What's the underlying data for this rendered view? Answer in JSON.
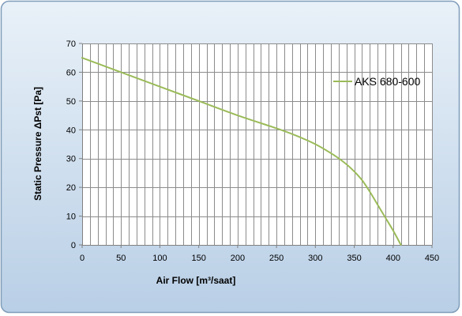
{
  "chart_data": {
    "type": "line",
    "xlabel": "Air Flow [m³/saat]",
    "ylabel": "Static Pressure ΔPst [Pa]",
    "xlim": [
      0,
      450
    ],
    "ylim": [
      0,
      70
    ],
    "x_ticks": [
      "0",
      "50",
      "100",
      "150",
      "200",
      "250",
      "300",
      "350",
      "400",
      "450"
    ],
    "y_ticks": [
      "0",
      "10",
      "20",
      "30",
      "40",
      "50",
      "60",
      "70"
    ],
    "x_tick_values": [
      0,
      50,
      100,
      150,
      200,
      250,
      300,
      350,
      400,
      450
    ],
    "y_tick_values": [
      0,
      10,
      20,
      30,
      40,
      50,
      60,
      70
    ],
    "x_minor_step": 10,
    "grid": true,
    "legend_position": "right",
    "series": [
      {
        "name": "AKS 680-600",
        "color": "#9bbb59",
        "x": [
          0,
          50,
          100,
          150,
          200,
          250,
          275,
          300,
          325,
          340,
          350,
          360,
          370,
          380,
          390,
          400,
          410
        ],
        "y": [
          65,
          60,
          55,
          50,
          45,
          40.5,
          38,
          35,
          31,
          28,
          25.5,
          22.5,
          18.5,
          14,
          9.5,
          5,
          0
        ]
      }
    ]
  }
}
